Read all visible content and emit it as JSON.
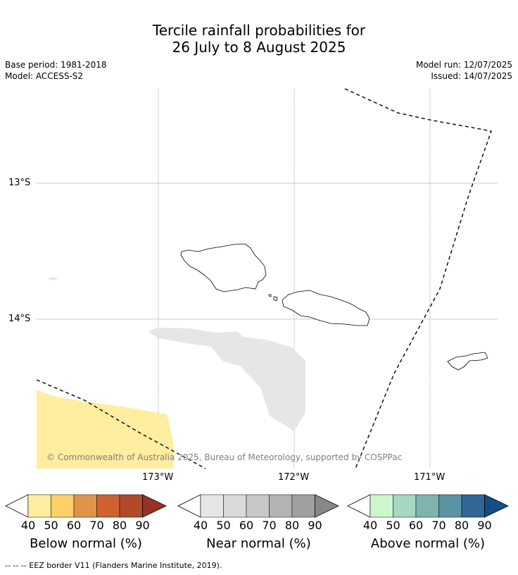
{
  "title": {
    "line1": "Tercile rainfall probabilities for",
    "line2": "26 July to 8 August 2025"
  },
  "meta": {
    "base_period": "Base period: 1981-2018",
    "model": "Model: ACCESS-S2",
    "model_run": "Model run: 12/07/2025",
    "issued": "Issued: 14/07/2025"
  },
  "map": {
    "lat_labels": [
      "13°S",
      "14°S"
    ],
    "lon_labels": [
      "173°W",
      "172°W",
      "171°W"
    ],
    "copyright": "© Commonwealth of Australia 2025, Bureau of Meteorology, supported by COSPPac",
    "colors": {
      "below_light": "#ffeda0",
      "near_light": "#e6e6e6",
      "coast": "#000000"
    }
  },
  "legend": {
    "ticks": [
      "40",
      "50",
      "60",
      "70",
      "80",
      "90"
    ],
    "bars": [
      {
        "label": "Below normal (%)",
        "colors": [
          "#ffeda0",
          "#fecf66",
          "#e0944a",
          "#cd6230",
          "#b04a27",
          "#973322"
        ]
      },
      {
        "label": "Near normal (%)",
        "colors": [
          "#e6e6e6",
          "#d9d9d9",
          "#c8c8c8",
          "#b3b3b3",
          "#a0a0a0",
          "#888888"
        ]
      },
      {
        "label": "Above normal (%)",
        "colors": [
          "#ccf7cb",
          "#a5d7c1",
          "#7fb3b0",
          "#5a94a3",
          "#316697",
          "#134e86"
        ]
      }
    ]
  },
  "footer": "--  --  -- EEZ border V11 (Flanders Marine Institute, 2019)."
}
